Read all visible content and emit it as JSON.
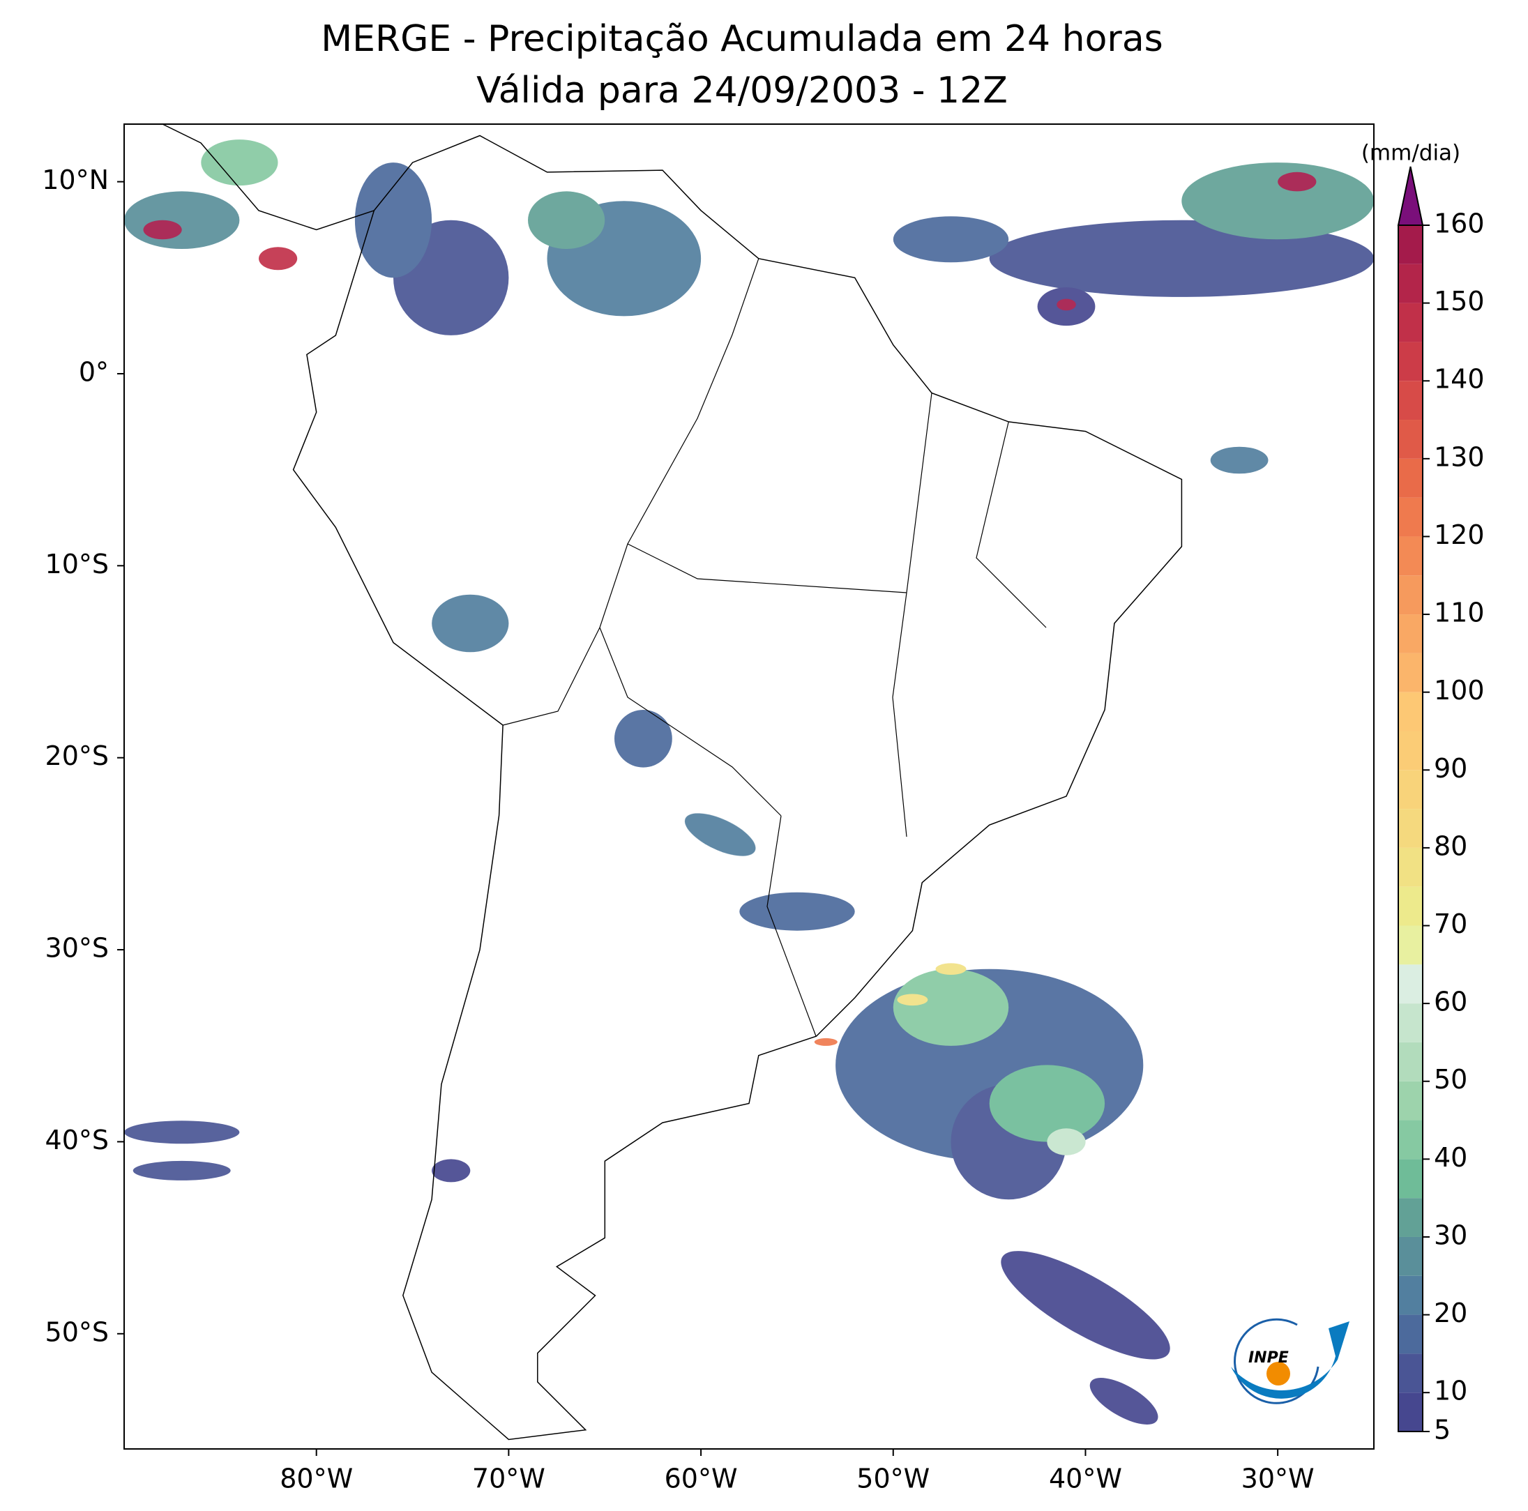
{
  "header": {
    "title": "MERGE - Precipitação Acumulada em 24 horas",
    "subtitle": "Válida para 24/09/2003 - 12Z"
  },
  "map": {
    "xlim": [
      -90,
      -25
    ],
    "ylim": [
      -56,
      13
    ],
    "xticks": [
      {
        "value": -80,
        "label": "80°W"
      },
      {
        "value": -70,
        "label": "70°W"
      },
      {
        "value": -60,
        "label": "60°W"
      },
      {
        "value": -50,
        "label": "50°W"
      },
      {
        "value": -40,
        "label": "40°W"
      },
      {
        "value": -30,
        "label": "30°W"
      }
    ],
    "yticks": [
      {
        "value": 10,
        "label": "10°N"
      },
      {
        "value": 0,
        "label": "0°"
      },
      {
        "value": -10,
        "label": "10°S"
      },
      {
        "value": -20,
        "label": "20°S"
      },
      {
        "value": -30,
        "label": "30°S"
      },
      {
        "value": -40,
        "label": "40°S"
      },
      {
        "value": -50,
        "label": "50°S"
      }
    ]
  },
  "colorbar": {
    "label": "(mm/dia)",
    "lim": [
      5,
      160
    ],
    "ticks": [
      5,
      10,
      20,
      30,
      40,
      50,
      60,
      70,
      80,
      90,
      100,
      110,
      120,
      130,
      140,
      150,
      160
    ],
    "levels": [
      5,
      10,
      15,
      20,
      25,
      30,
      35,
      40,
      45,
      50,
      55,
      60,
      65,
      70,
      75,
      80,
      85,
      90,
      95,
      100,
      105,
      110,
      115,
      120,
      125,
      130,
      135,
      140,
      145,
      150,
      155,
      160
    ],
    "colors": [
      "#46478f",
      "#4a5595",
      "#4c6a9c",
      "#527f9f",
      "#5a8f9a",
      "#62a196",
      "#6fbc98",
      "#86c9a2",
      "#9dd3ac",
      "#b2dcbc",
      "#c6e5cd",
      "#dbeee2",
      "#e8f0a0",
      "#edea8c",
      "#f1e184",
      "#f5d97e",
      "#f8d37a",
      "#fbcc76",
      "#fdc874",
      "#fbb56b",
      "#f9a864",
      "#f69a5d",
      "#f38a55",
      "#ef7a4e",
      "#e96b49",
      "#e05a48",
      "#d74b48",
      "#cc3c48",
      "#c13049",
      "#b3254a",
      "#a41b4b"
    ],
    "extend_color": "#7a0f7a"
  },
  "logo": {
    "text": "INPE"
  }
}
